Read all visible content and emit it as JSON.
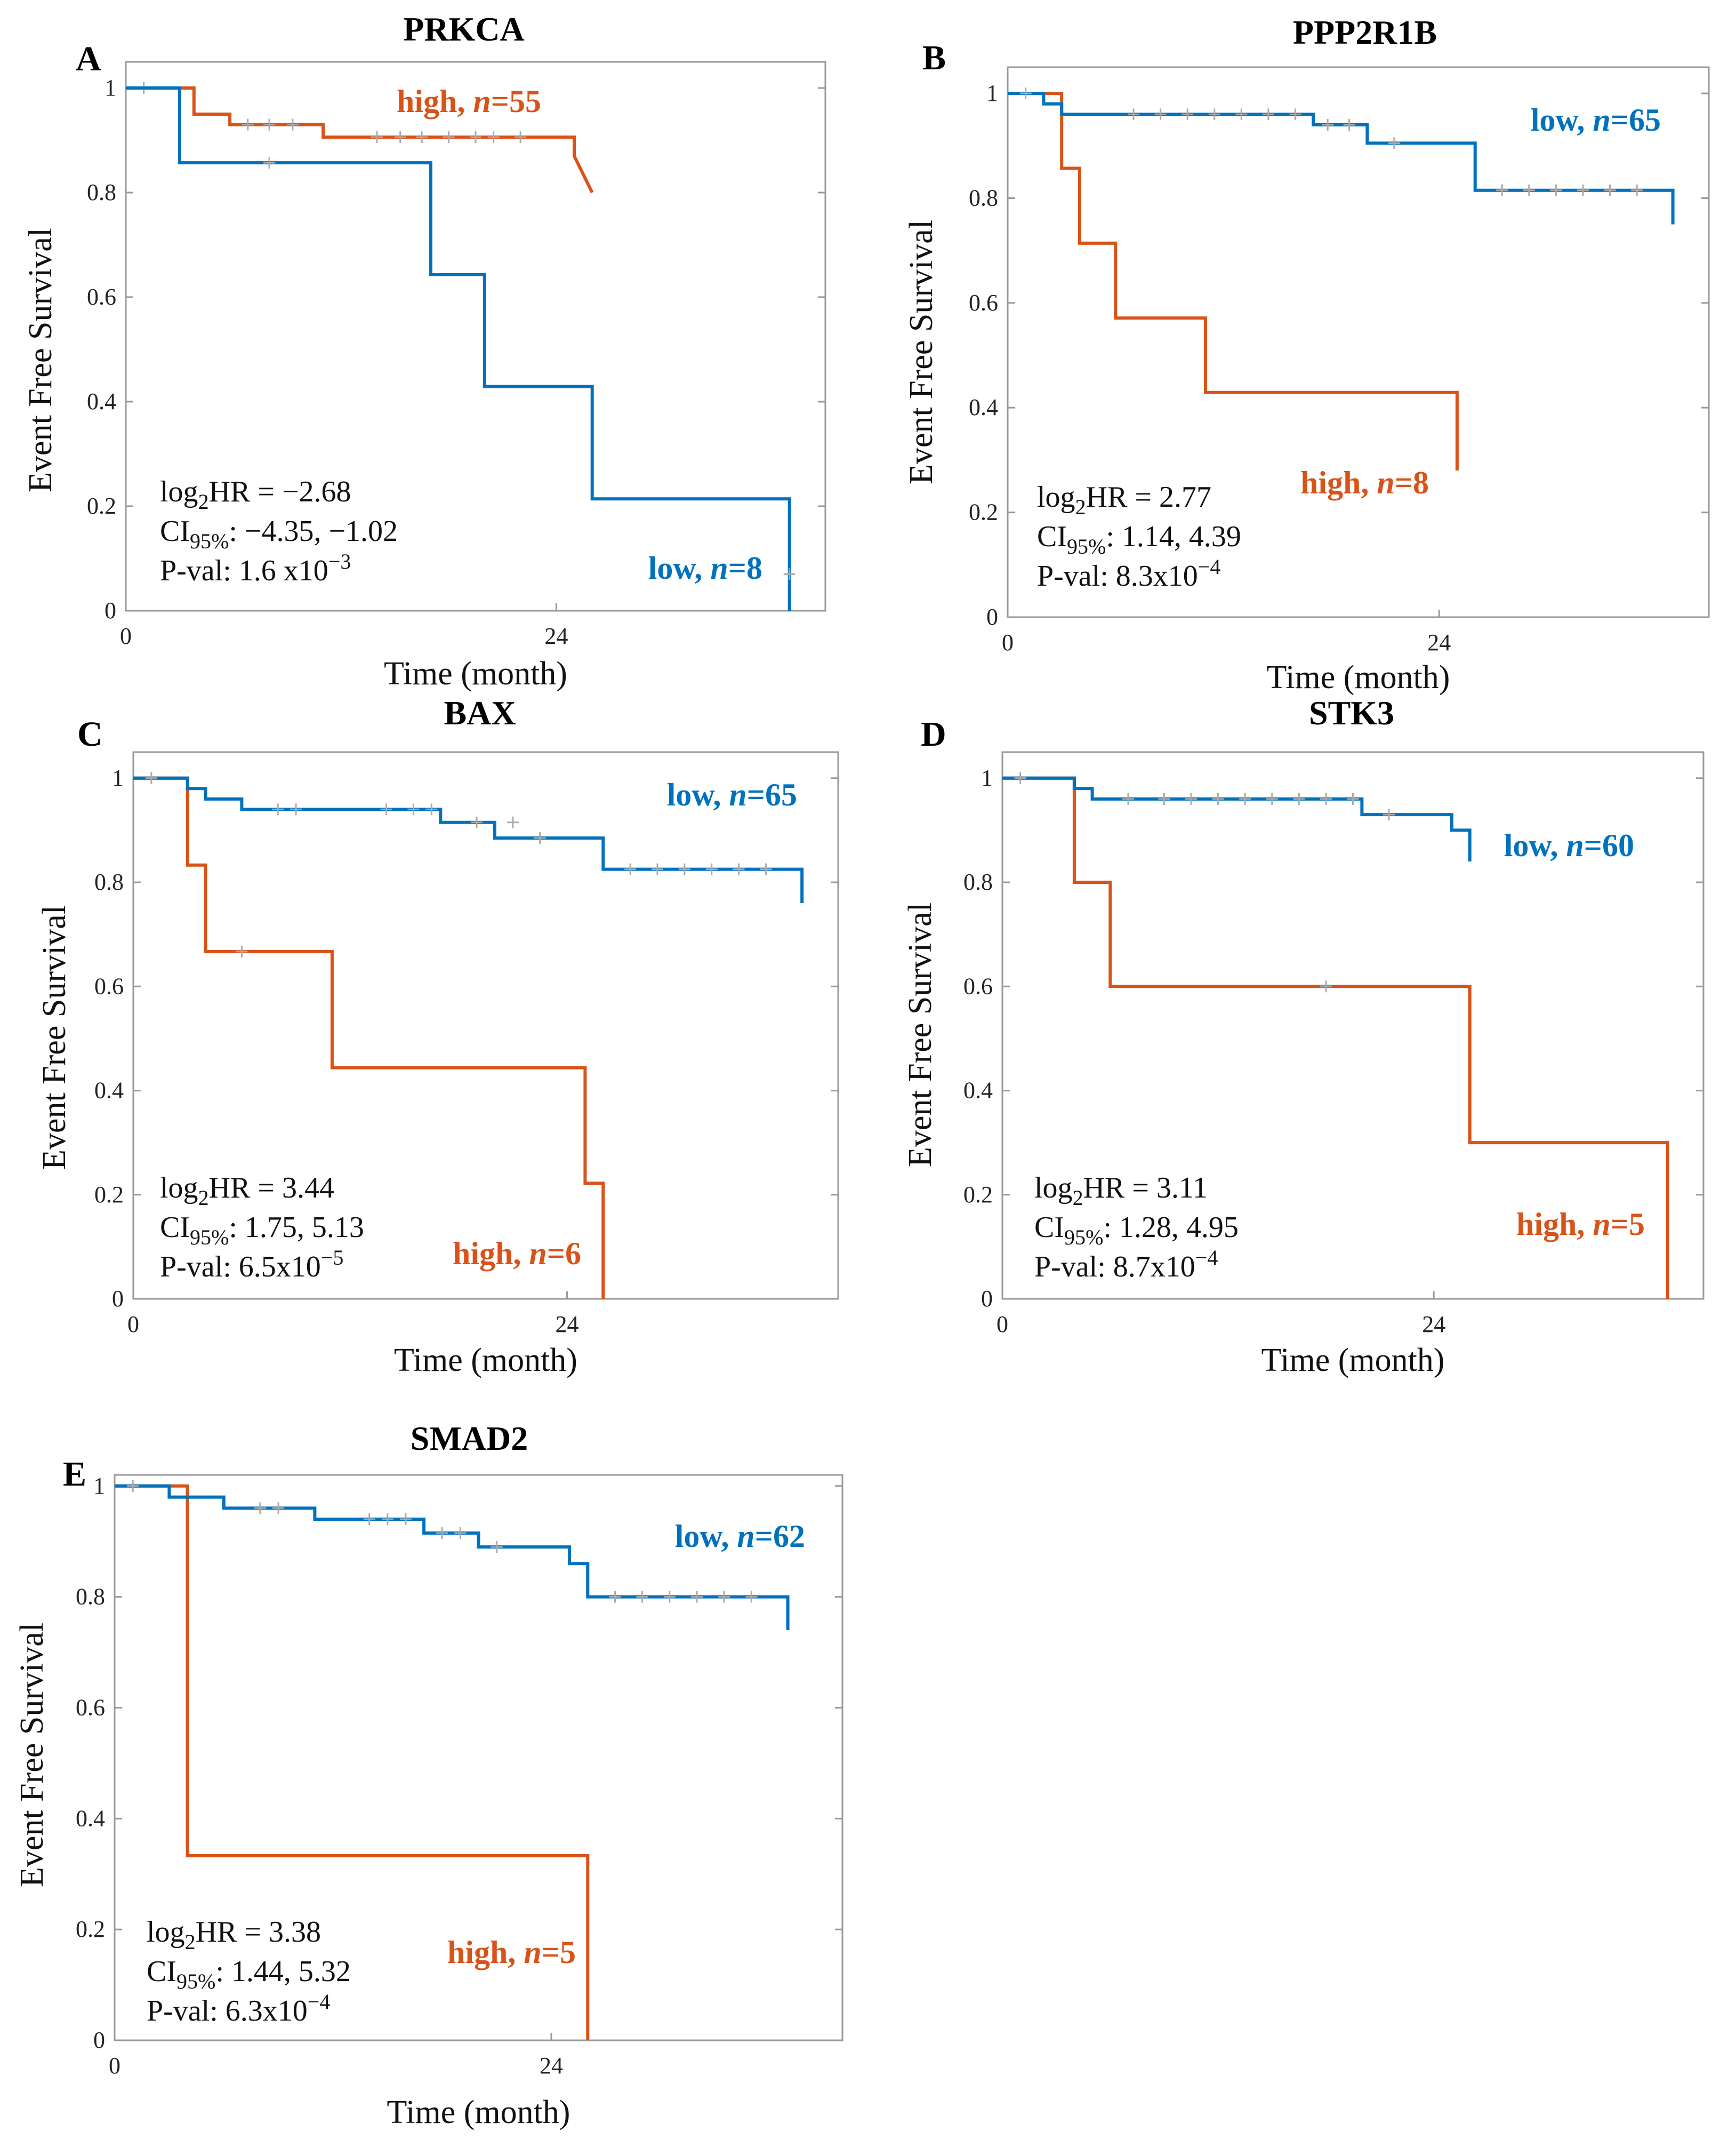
{
  "colors": {
    "high": "#d95319",
    "low": "#0072bd"
  },
  "axis_common": {
    "xlabel": "Time (month)",
    "ylabel": "Event Free Survival",
    "x_tick_labels": [
      "0",
      "24"
    ],
    "y_tick_labels": [
      "0",
      "0.2",
      "0.4",
      "0.6",
      "0.8",
      "1"
    ]
  },
  "chart_data": [
    {
      "type": "line",
      "panel": "A",
      "title": "PRKCA",
      "xlabel": "Time (month)",
      "ylabel": "Event Free Survival",
      "xlim": [
        0,
        39
      ],
      "ylim": [
        0,
        1.05
      ],
      "x_ticks": [
        0,
        24
      ],
      "y_ticks": [
        0,
        0.2,
        0.4,
        0.6,
        0.8,
        1
      ],
      "stats": {
        "hr_value": "= −2.68",
        "ci_value": ": −4.35, −1.02",
        "p_mantissa": "P-val: 1.6 x10",
        "p_exp": "−3"
      },
      "legend_label_high": "high, ",
      "legend_n_high": "=55",
      "legend_label_low": "low, ",
      "legend_n_low": "=8",
      "series": [
        {
          "name": "high",
          "n": 55,
          "x": [
            0,
            3.8,
            3.8,
            5.8,
            5.8,
            11.0,
            11.0,
            25.0,
            25.0,
            26.0
          ],
          "y": [
            1,
            1,
            0.95,
            0.95,
            0.93,
            0.93,
            0.906,
            0.906,
            0.87,
            0.8
          ],
          "censors_x": [
            1,
            6.8,
            8,
            9.3,
            14,
            15.3,
            16.5,
            18,
            19.5,
            20.5,
            22
          ],
          "censors_y": [
            1,
            0.93,
            0.93,
            0.93,
            0.906,
            0.906,
            0.906,
            0.906,
            0.906,
            0.906,
            0.906
          ]
        },
        {
          "name": "low",
          "n": 8,
          "x": [
            0,
            3.0,
            3.0,
            17.0,
            17.0,
            20.0,
            20.0,
            26.0,
            26.0,
            37.0,
            37.0
          ],
          "y": [
            1,
            1,
            0.857,
            0.857,
            0.643,
            0.643,
            0.429,
            0.429,
            0.214,
            0.214,
            0
          ],
          "censors_x": [
            8,
            37
          ],
          "censors_y": [
            0.857,
            0.07
          ]
        }
      ]
    },
    {
      "type": "line",
      "panel": "B",
      "title": "PPP2R1B",
      "xlabel": "Time (month)",
      "ylabel": "Event Free Survival",
      "xlim": [
        0,
        39
      ],
      "ylim": [
        0,
        1.05
      ],
      "x_ticks": [
        0,
        24
      ],
      "y_ticks": [
        0,
        0.2,
        0.4,
        0.6,
        0.8,
        1
      ],
      "stats": {
        "hr_value": "= 2.77",
        "ci_value": ": 1.14, 4.39",
        "p_mantissa": "P-val: 8.3x10",
        "p_exp": "−4"
      },
      "legend_label_high": "high, ",
      "legend_n_high": "=8",
      "legend_label_low": "low, ",
      "legend_n_low": "=65",
      "series": [
        {
          "name": "high",
          "n": 8,
          "x": [
            0,
            3.0,
            3.0,
            4.0,
            4.0,
            6.0,
            6.0,
            11.0,
            11.0,
            25.0,
            25.0
          ],
          "y": [
            1,
            1,
            0.857,
            0.857,
            0.714,
            0.714,
            0.571,
            0.571,
            0.429,
            0.429,
            0.28
          ],
          "censors_x": [],
          "censors_y": []
        },
        {
          "name": "low",
          "n": 65,
          "x": [
            0,
            2.0,
            2.0,
            3.0,
            3.0,
            5.0,
            5.0,
            17.0,
            17.0,
            20.0,
            20.0,
            26.0,
            26.0,
            37.0,
            37.0
          ],
          "y": [
            1,
            1,
            0.98,
            0.98,
            0.96,
            0.96,
            0.96,
            0.96,
            0.94,
            0.94,
            0.905,
            0.905,
            0.815,
            0.815,
            0.75
          ],
          "censors_x": [
            1,
            7,
            8.5,
            10,
            11.5,
            13,
            14.5,
            16,
            17.8,
            19,
            21.5,
            27.5,
            29,
            30.5,
            32,
            33.5,
            35
          ],
          "censors_y": [
            1,
            0.96,
            0.96,
            0.96,
            0.96,
            0.96,
            0.96,
            0.96,
            0.94,
            0.94,
            0.905,
            0.815,
            0.815,
            0.815,
            0.815,
            0.815,
            0.815
          ]
        }
      ]
    },
    {
      "type": "line",
      "panel": "C",
      "title": "BAX",
      "xlabel": "Time (month)",
      "ylabel": "Event Free Survival",
      "xlim": [
        0,
        39
      ],
      "ylim": [
        0,
        1.05
      ],
      "x_ticks": [
        0,
        24
      ],
      "y_ticks": [
        0,
        0.2,
        0.4,
        0.6,
        0.8,
        1
      ],
      "stats": {
        "hr_value": "= 3.44",
        "ci_value": ": 1.75, 5.13",
        "p_mantissa": "P-val: 6.5x10",
        "p_exp": "−5"
      },
      "legend_label_high": "high, ",
      "legend_n_high": "=6",
      "legend_label_low": "low, ",
      "legend_n_low": "=65",
      "series": [
        {
          "name": "high",
          "n": 6,
          "x": [
            0,
            3.0,
            3.0,
            4.0,
            4.0,
            11.0,
            11.0,
            25.0,
            25.0,
            26.0,
            26.0
          ],
          "y": [
            1,
            1,
            0.833,
            0.833,
            0.667,
            0.667,
            0.444,
            0.444,
            0.222,
            0.222,
            0
          ],
          "censors_x": [
            6
          ],
          "censors_y": [
            0.667
          ]
        },
        {
          "name": "low",
          "n": 65,
          "x": [
            0,
            3.0,
            3.0,
            4.0,
            4.0,
            6.0,
            6.0,
            17.0,
            17.0,
            20.0,
            20.0,
            26.0,
            26.0,
            37.0,
            37.0
          ],
          "y": [
            1,
            1,
            0.98,
            0.98,
            0.96,
            0.96,
            0.94,
            0.94,
            0.915,
            0.915,
            0.885,
            0.885,
            0.825,
            0.825,
            0.76
          ],
          "censors_x": [
            1,
            8,
            9,
            14,
            15.5,
            16.5,
            19,
            21,
            22.5,
            27.5,
            29,
            30.5,
            32,
            33.5,
            35
          ],
          "censors_y": [
            1,
            0.94,
            0.94,
            0.94,
            0.94,
            0.94,
            0.915,
            0.915,
            0.885,
            0.825,
            0.825,
            0.825,
            0.825,
            0.825,
            0.825
          ]
        }
      ]
    },
    {
      "type": "line",
      "panel": "D",
      "title": "STK3",
      "xlabel": "Time (month)",
      "ylabel": "Event Free Survival",
      "xlim": [
        0,
        39
      ],
      "ylim": [
        0,
        1.05
      ],
      "x_ticks": [
        0,
        24
      ],
      "y_ticks": [
        0,
        0.2,
        0.4,
        0.6,
        0.8,
        1
      ],
      "stats": {
        "hr_value": "= 3.11",
        "ci_value": ": 1.28, 4.95",
        "p_mantissa": "P-val: 8.7x10",
        "p_exp": "−4"
      },
      "legend_label_high": "high, ",
      "legend_n_high": "=5",
      "legend_label_low": "low, ",
      "legend_n_low": "=60",
      "series": [
        {
          "name": "high",
          "n": 5,
          "x": [
            0,
            4.0,
            4.0,
            6.0,
            6.0,
            26.0,
            26.0,
            37.0,
            37.0
          ],
          "y": [
            1,
            1,
            0.8,
            0.8,
            0.6,
            0.6,
            0.3,
            0.3,
            0
          ],
          "censors_x": [
            18
          ],
          "censors_y": [
            0.6
          ]
        },
        {
          "name": "low",
          "n": 60,
          "x": [
            0,
            4.0,
            4.0,
            5.0,
            5.0,
            20.0,
            20.0,
            25.0,
            25.0,
            26.0,
            26.0
          ],
          "y": [
            1,
            1,
            0.98,
            0.98,
            0.96,
            0.96,
            0.93,
            0.93,
            0.9,
            0.9,
            0.84
          ],
          "censors_x": [
            1,
            7,
            9,
            10.5,
            12,
            13.5,
            15,
            16.5,
            18,
            19.5,
            21.5
          ],
          "censors_y": [
            1,
            0.96,
            0.96,
            0.96,
            0.96,
            0.96,
            0.96,
            0.96,
            0.96,
            0.96,
            0.93
          ]
        }
      ]
    },
    {
      "type": "line",
      "panel": "E",
      "title": "SMAD2",
      "xlabel": "Time (month)",
      "ylabel": "Event Free Survival",
      "xlim": [
        0,
        40
      ],
      "ylim": [
        0,
        1.02
      ],
      "x_ticks": [
        0,
        24
      ],
      "y_ticks": [
        0,
        0.2,
        0.4,
        0.6,
        0.8,
        1
      ],
      "stats": {
        "hr_value": "= 3.38",
        "ci_value": ": 1.44, 5.32",
        "p_mantissa": "P-val: 6.3x10",
        "p_exp": "−4"
      },
      "legend_label_high": "high, ",
      "legend_n_high": "=5",
      "legend_label_low": "low, ",
      "legend_n_low": "=62",
      "series": [
        {
          "name": "high",
          "n": 5,
          "x": [
            0,
            4.0,
            4.0,
            26.0,
            26.0
          ],
          "y": [
            1,
            1,
            0.333,
            0.333,
            0
          ],
          "censors_x": [
            1
          ],
          "censors_y": [
            1
          ]
        },
        {
          "name": "low",
          "n": 62,
          "x": [
            0,
            3.0,
            3.0,
            6.0,
            6.0,
            11.0,
            11.0,
            17.0,
            17.0,
            20.0,
            20.0,
            25.0,
            25.0,
            26.0,
            26.0,
            37.0,
            37.0
          ],
          "y": [
            1,
            1,
            0.98,
            0.98,
            0.96,
            0.96,
            0.94,
            0.94,
            0.915,
            0.915,
            0.89,
            0.89,
            0.86,
            0.86,
            0.8,
            0.8,
            0.74
          ],
          "censors_x": [
            1,
            8,
            9,
            14,
            15,
            16,
            18,
            19,
            21,
            27.5,
            29,
            30.5,
            32,
            33.5,
            35
          ],
          "censors_y": [
            1,
            0.96,
            0.96,
            0.94,
            0.94,
            0.94,
            0.915,
            0.915,
            0.89,
            0.8,
            0.8,
            0.8,
            0.8,
            0.8,
            0.8
          ]
        }
      ]
    }
  ]
}
